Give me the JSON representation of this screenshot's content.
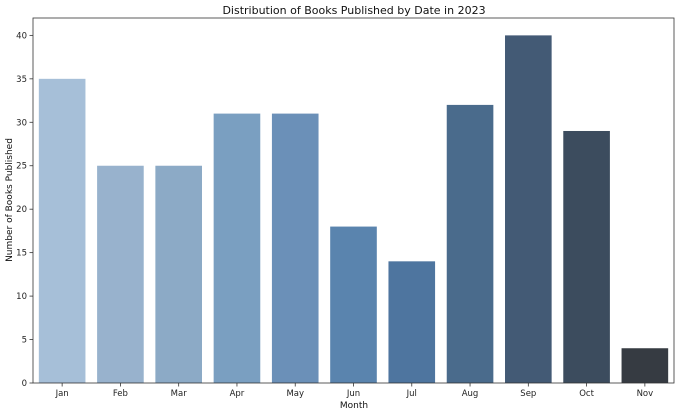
{
  "chart_data": {
    "type": "bar",
    "title": "Distribution of Books Published by Date in 2023",
    "xlabel": "Month",
    "ylabel": "Number of Books Published",
    "categories": [
      "Jan",
      "Feb",
      "Mar",
      "Apr",
      "May",
      "Jun",
      "Jul",
      "Aug",
      "Sep",
      "Oct",
      "Nov"
    ],
    "values": [
      35,
      25,
      25,
      31,
      31,
      18,
      14,
      32,
      40,
      29,
      4
    ],
    "ylim": [
      0,
      42
    ],
    "yticks": [
      0,
      5,
      10,
      15,
      20,
      25,
      30,
      35,
      40
    ],
    "grid": false,
    "legend": "none",
    "palette": "blues_d",
    "colors": [
      "#a6bfd8",
      "#98b2cd",
      "#8caac6",
      "#7a9fc1",
      "#6b90b8",
      "#5a84ae",
      "#4e759f",
      "#4a6b8c",
      "#435a75",
      "#3c4c5e",
      "#363b42"
    ]
  }
}
